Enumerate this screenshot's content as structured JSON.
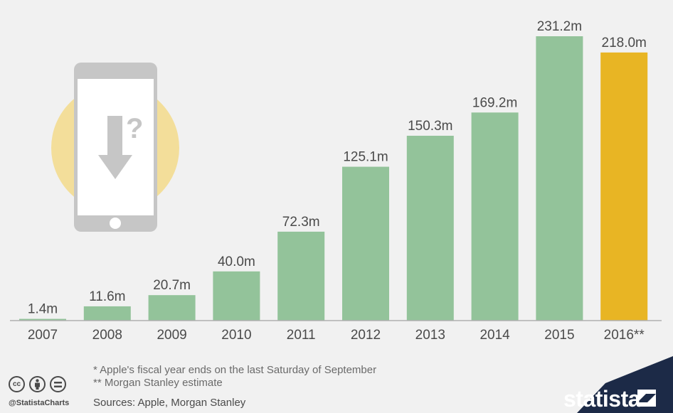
{
  "chart_data": {
    "type": "bar",
    "categories": [
      "2007",
      "2008",
      "2009",
      "2010",
      "2011",
      "2012",
      "2013",
      "2014",
      "2015",
      "2016**"
    ],
    "values": [
      1.4,
      11.6,
      20.7,
      40.0,
      72.3,
      125.1,
      150.3,
      169.2,
      231.2,
      218.0
    ],
    "value_labels": [
      "1.4m",
      "11.6m",
      "20.7m",
      "40.0m",
      "72.3m",
      "125.1m",
      "150.3m",
      "169.2m",
      "231.2m",
      "218.0m"
    ],
    "bar_color": "#93c39a",
    "highlight_color": "#e8b524",
    "highlight_index": 9,
    "ylim": [
      0,
      231.2
    ],
    "grid": false,
    "legend": false
  },
  "footnotes": {
    "note1": "* Apple's fiscal year ends on the last Saturday of September",
    "note2": "** Morgan Stanley estimate"
  },
  "sources": "Sources: Apple, Morgan Stanley",
  "license_icons": [
    "cc",
    "by",
    "nd"
  ],
  "handle": "@StatistaCharts",
  "brand": {
    "name": "statista",
    "band_color": "#1c2a47"
  },
  "illustration": {
    "icon": "smartphone-download-question-icon",
    "circle_color": "#f3de9a",
    "phone_color": "#c6c6c6"
  }
}
